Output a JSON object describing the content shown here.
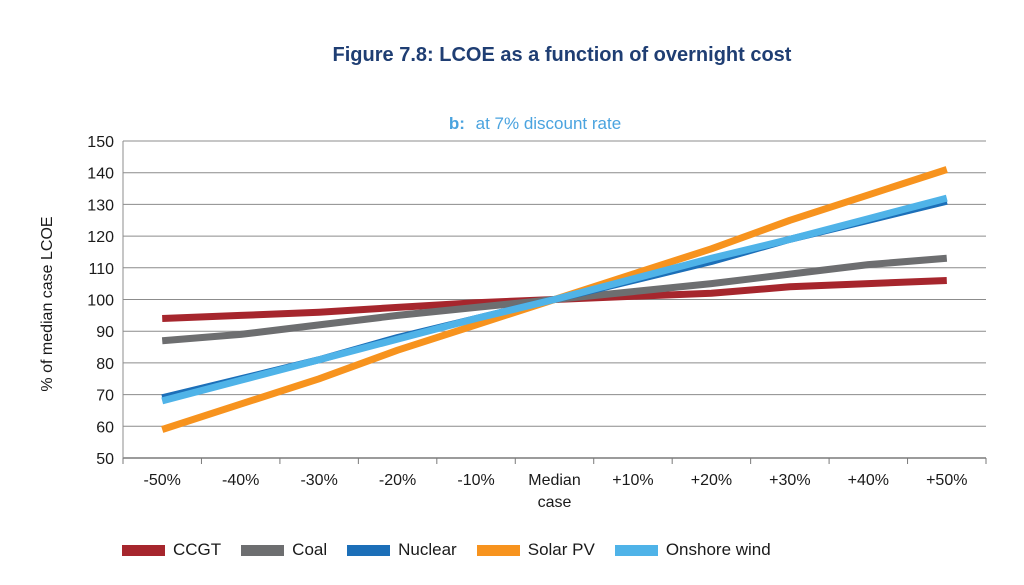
{
  "figure_title": "Figure 7.8: LCOE as a function of overnight cost",
  "chart_data": {
    "type": "line",
    "subtitle_prefix": "b:",
    "subtitle_text": "at 7% discount rate",
    "ylabel": "% of median case LCOE",
    "xlabel": "",
    "categories": [
      "-50%",
      "-40%",
      "-30%",
      "-20%",
      "-10%",
      "Median case",
      "+10%",
      "+20%",
      "+30%",
      "+40%",
      "+50%"
    ],
    "ylim": [
      50,
      150
    ],
    "yticks": [
      50,
      60,
      70,
      80,
      90,
      100,
      110,
      120,
      130,
      140,
      150
    ],
    "grid": true,
    "legend_position": "bottom",
    "series": [
      {
        "name": "CCGT",
        "color": "#a6262d",
        "values": [
          94,
          95,
          96,
          97.5,
          99,
          100,
          101,
          102,
          104,
          105,
          106
        ]
      },
      {
        "name": "Coal",
        "color": "#6d6e70",
        "values": [
          87,
          89,
          92,
          95,
          97.5,
          100,
          102.5,
          105,
          108,
          111,
          113
        ]
      },
      {
        "name": "Nuclear",
        "color": "#1c6fb8",
        "values": [
          69,
          75,
          81,
          88,
          94,
          100,
          106,
          112,
          119,
          125,
          131
        ]
      },
      {
        "name": "Solar PV",
        "color": "#f7931e",
        "values": [
          59,
          67,
          75,
          84,
          92,
          100,
          108,
          116,
          125,
          133,
          141
        ]
      },
      {
        "name": "Onshore wind",
        "color": "#4fb3e8",
        "values": [
          68,
          74.5,
          81,
          87.5,
          94,
          100,
          106.5,
          113,
          119,
          125.5,
          132
        ]
      }
    ]
  }
}
